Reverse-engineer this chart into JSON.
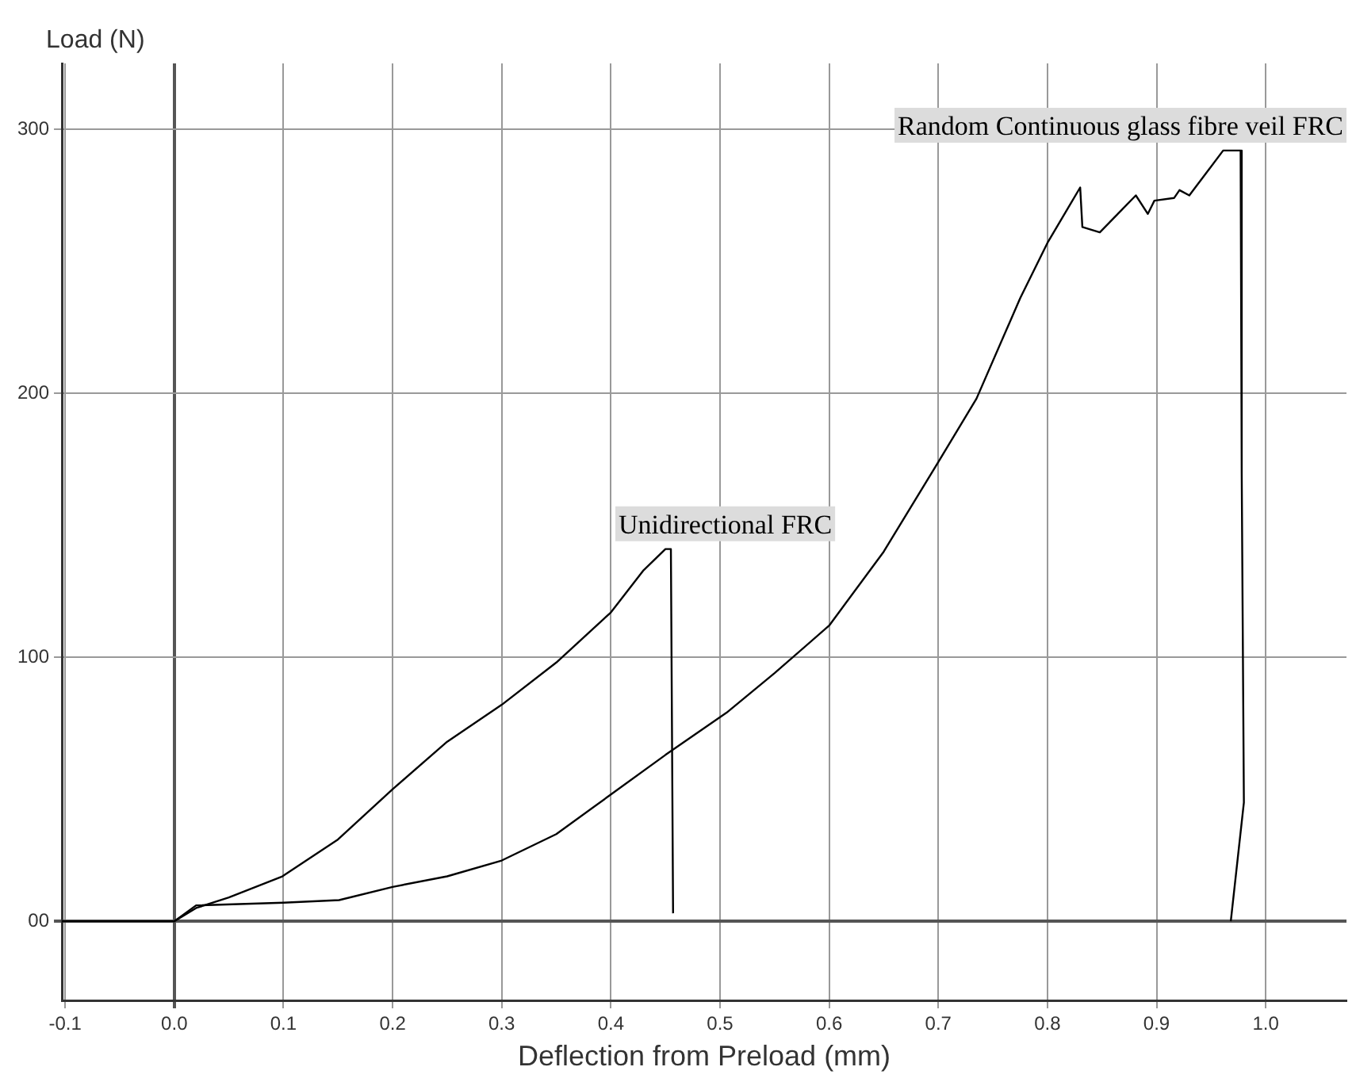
{
  "chart_data": {
    "type": "line",
    "xlabel": "Deflection from Preload (mm)",
    "ylabel": "Load (N)",
    "xlim": [
      -0.103,
      1.074
    ],
    "ylim": [
      -30,
      325
    ],
    "xticks": [
      -0.1,
      {
        "value": 0,
        "label": "0.0"
      },
      0.1,
      0.2,
      0.3,
      0.4,
      0.5,
      0.6,
      0.7,
      0.8,
      0.9,
      {
        "value": 1,
        "label": "1.0"
      }
    ],
    "yticks": [
      {
        "value": 0,
        "label": "00"
      },
      100,
      200,
      300
    ],
    "grid": true,
    "legend": false,
    "marker": "none",
    "line_style": "solid",
    "series": [
      {
        "name": "Unidirectional FRC",
        "color": "#000000",
        "x": [
          -0.103,
          0,
          0.02,
          0.05,
          0.099,
          0.15,
          0.2,
          0.25,
          0.3,
          0.35,
          0.4,
          0.43,
          0.45,
          0.455,
          0.457
        ],
        "values": [
          0,
          0,
          5,
          9,
          17,
          31,
          50,
          68,
          82,
          98,
          117,
          133,
          141,
          141,
          3
        ]
      },
      {
        "name": "Random Continuous glass fibre veil FRC",
        "color": "#000000",
        "x": [
          -0.103,
          0,
          0.02,
          0.1,
          0.151,
          0.2,
          0.25,
          0.3,
          0.35,
          0.4,
          0.45,
          0.506,
          0.55,
          0.6,
          0.65,
          0.7,
          0.735,
          0.775,
          0.8,
          0.83,
          0.832,
          0.848,
          0.881,
          0.892,
          0.898,
          0.916,
          0.921,
          0.93,
          0.961,
          0.977,
          0.978,
          0.98,
          0.968
        ],
        "values": [
          0,
          0,
          6,
          7,
          8,
          13,
          17,
          23,
          33,
          48,
          63,
          79,
          94,
          112,
          140,
          174,
          198,
          236,
          257,
          278,
          263,
          261,
          275,
          268,
          273,
          274,
          277,
          275,
          292,
          292,
          170,
          45,
          0
        ]
      }
    ]
  }
}
